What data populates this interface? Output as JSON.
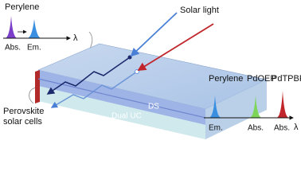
{
  "top_inset": {
    "title": "Perylene",
    "labels": [
      "Abs.",
      "Em."
    ],
    "axis_symbol": "λ"
  },
  "solar_light": "Solar light",
  "layers": [
    "DS",
    "Dual UC"
  ],
  "device": [
    "Perovskite",
    "solar cells"
  ],
  "bottom_inset": {
    "titles": [
      "Perylene",
      "PdOEP",
      "PdTPBP"
    ],
    "labels": [
      "Em.",
      "Abs.",
      "Abs."
    ],
    "axis_symbol": "λ"
  }
}
